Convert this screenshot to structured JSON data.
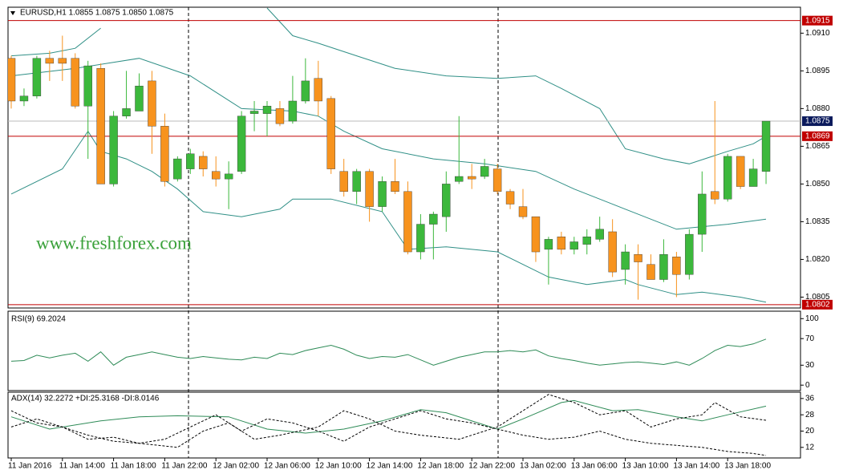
{
  "chart_data": [
    {
      "type": "candlestick",
      "title": "EURUSD,H1  1.0855 1.0875 1.0850 1.0875",
      "watermark": "www.freshforex.com",
      "categories": [
        "11 Jan 2016",
        null,
        null,
        null,
        "11 Jan 14:00",
        null,
        null,
        null,
        "11 Jan 18:00",
        null,
        null,
        null,
        "11 Jan 22:00",
        null,
        null,
        null,
        "12 Jan 02:00",
        null,
        null,
        null,
        "12 Jan 06:00",
        null,
        null,
        null,
        "12 Jan 10:00",
        null,
        null,
        null,
        "12 Jan 14:00",
        null,
        null,
        null,
        "12 Jan 18:00",
        null,
        null,
        null,
        "12 Jan 22:00",
        null,
        null,
        null,
        "13 Jan 02:00",
        null,
        null,
        null,
        "13 Jan 06:00",
        null,
        null,
        null,
        "13 Jan 10:00",
        null,
        null,
        null,
        "13 Jan 14:00",
        null,
        null,
        null,
        "13 Jan 18:00",
        null,
        null,
        null
      ],
      "open": [
        1.09,
        1.0883,
        1.0885,
        1.09,
        1.09,
        1.09,
        1.0881,
        1.0896,
        1.085,
        1.0877,
        1.0879,
        1.0891,
        1.0873,
        1.0852,
        1.0856,
        1.0861,
        1.0855,
        1.0852,
        1.0855,
        1.0878,
        1.0878,
        1.088,
        1.0875,
        1.0883,
        1.0892,
        1.0884,
        1.0855,
        1.0847,
        1.0855,
        1.0841,
        1.0851,
        1.0847,
        1.0823,
        1.0834,
        1.0837,
        1.0851,
        1.0853,
        1.0853,
        1.0856,
        1.0847,
        1.0841,
        1.0837,
        1.0824,
        1.0829,
        1.0824,
        1.0826,
        1.0828,
        1.0831,
        1.0816,
        1.0822,
        1.0818,
        1.0812,
        1.0821,
        1.0814,
        1.083,
        1.0847,
        1.0844,
        1.0861,
        1.0849,
        1.0855
      ],
      "high": [
        1.0901,
        1.0888,
        1.0901,
        1.0903,
        1.0909,
        1.0902,
        1.0899,
        1.0898,
        1.0879,
        1.0895,
        1.0894,
        1.0895,
        1.0878,
        1.0861,
        1.0864,
        1.0863,
        1.0861,
        1.0859,
        1.0879,
        1.0883,
        1.0883,
        1.0883,
        1.0893,
        1.09,
        1.0899,
        1.0885,
        1.086,
        1.0856,
        1.0856,
        1.0853,
        1.086,
        1.0851,
        1.0838,
        1.0839,
        1.0855,
        1.0877,
        1.0858,
        1.086,
        1.0858,
        1.0848,
        1.0848,
        1.0837,
        1.0829,
        1.0831,
        1.0829,
        1.0832,
        1.0837,
        1.0836,
        1.0826,
        1.0826,
        1.0822,
        1.0828,
        1.0823,
        1.0832,
        1.0855,
        1.0883,
        1.0862,
        1.0861,
        1.086,
        1.0875
      ],
      "low": [
        1.088,
        1.0881,
        1.0884,
        1.0891,
        1.0891,
        1.088,
        1.086,
        1.085,
        1.0849,
        1.0876,
        1.0879,
        1.0862,
        1.0849,
        1.0851,
        1.0854,
        1.0853,
        1.0849,
        1.084,
        1.0854,
        1.0871,
        1.0869,
        1.0873,
        1.0874,
        1.0882,
        1.0877,
        1.0854,
        1.0845,
        1.0842,
        1.0835,
        1.0839,
        1.0846,
        1.0822,
        1.082,
        1.082,
        1.0831,
        1.085,
        1.0848,
        1.0852,
        1.0846,
        1.084,
        1.0836,
        1.0819,
        1.081,
        1.0822,
        1.0822,
        1.0822,
        1.0827,
        1.0813,
        1.081,
        1.0804,
        1.0812,
        1.0811,
        1.0805,
        1.0812,
        1.0823,
        1.0842,
        1.0843,
        1.0848,
        1.0849,
        1.085
      ],
      "close": [
        1.0883,
        1.0885,
        1.09,
        1.0898,
        1.0898,
        1.0881,
        1.0897,
        1.085,
        1.0877,
        1.088,
        1.0889,
        1.0873,
        1.0851,
        1.086,
        1.0862,
        1.0856,
        1.0852,
        1.0854,
        1.0877,
        1.0879,
        1.0881,
        1.0874,
        1.0883,
        1.0891,
        1.0883,
        1.0856,
        1.0847,
        1.0855,
        1.0841,
        1.0851,
        1.0847,
        1.0823,
        1.0834,
        1.0838,
        1.085,
        1.0853,
        1.0852,
        1.0857,
        1.0847,
        1.0842,
        1.0837,
        1.0823,
        1.0828,
        1.0824,
        1.0827,
        1.0829,
        1.0832,
        1.0815,
        1.0823,
        1.0819,
        1.0812,
        1.0822,
        1.0814,
        1.083,
        1.0846,
        1.0844,
        1.0861,
        1.0849,
        1.0856,
        1.0875
      ],
      "up_color": "#3cb83c",
      "down_color": "#f7931e",
      "bands": [
        {
          "color": "#2f8f86",
          "x": [
            0,
            3,
            5,
            7,
            8,
            20,
            22,
            24,
            27,
            30,
            34,
            38,
            41,
            43,
            46,
            48,
            51,
            53,
            56,
            58,
            59
          ],
          "values": [
            1.0901,
            1.0902,
            1.0904,
            1.0912,
            null,
            1.092,
            1.0909,
            1.0906,
            1.0901,
            1.0896,
            1.0893,
            1.0892,
            1.0893,
            1.0888,
            1.088,
            1.0864,
            1.086,
            1.0858,
            1.0863,
            1.0866,
            1.0869
          ]
        },
        {
          "color": "#2f8f86",
          "x": [
            0,
            5,
            10,
            14,
            18,
            22,
            24,
            26,
            29,
            33,
            37,
            41,
            44,
            48,
            52,
            56,
            59
          ],
          "values": [
            1.0893,
            1.0896,
            1.09,
            1.0893,
            1.088,
            1.0879,
            1.0877,
            1.0871,
            1.0864,
            1.086,
            1.0858,
            1.0855,
            1.0848,
            1.084,
            1.0832,
            1.0834,
            1.0836
          ]
        },
        {
          "color": "#2f8f86",
          "x": [
            0,
            4,
            6,
            7,
            9,
            11,
            13,
            15,
            18,
            21,
            22,
            25,
            29,
            31,
            34,
            38,
            42,
            45,
            48,
            49,
            52,
            54,
            57,
            59
          ],
          "values": [
            1.0846,
            1.0856,
            1.0871,
            1.0863,
            1.086,
            1.0855,
            1.0848,
            1.0839,
            1.0837,
            1.084,
            1.0844,
            1.0844,
            1.0839,
            1.0824,
            1.0825,
            1.0823,
            1.0813,
            1.081,
            1.0812,
            1.081,
            1.0806,
            1.0807,
            1.0805,
            1.0803
          ]
        }
      ],
      "levels": [
        1.0915,
        1.0869,
        1.0802
      ],
      "level_color": "#c00000",
      "current": 1.0875,
      "current_color": "#0b1a5c",
      "ylim": [
        1.0801,
        1.092
      ],
      "yticks": [
        {
          "value": 1.091,
          "label": "1.0910"
        },
        1.0895,
        {
          "value": 1.088,
          "label": "1.0880"
        },
        1.0865,
        {
          "value": 1.085,
          "label": "1.0850"
        },
        1.0835,
        {
          "value": 1.082,
          "label": "1.0820"
        },
        1.0805
      ]
    },
    {
      "type": "line",
      "title": "RSI(9) 69.2024",
      "color": "#2e8b57",
      "values": [
        36,
        37,
        45,
        41,
        45,
        48,
        36,
        50,
        30,
        42,
        46,
        50,
        46,
        42,
        40,
        43,
        41,
        39,
        38,
        42,
        40,
        48,
        46,
        52,
        56,
        60,
        54,
        45,
        40,
        43,
        42,
        46,
        38,
        30,
        36,
        42,
        46,
        50,
        50,
        52,
        50,
        53,
        44,
        40,
        37,
        33,
        30,
        32,
        34,
        35,
        33,
        31,
        35,
        30,
        40,
        52,
        60,
        58,
        62,
        69.2024
      ],
      "ylim": [
        -7,
        110
      ],
      "yticks": [
        100,
        70,
        30,
        0
      ]
    },
    {
      "type": "line",
      "title": "ADX(14) 32.2272 +DI:25.3168 -DI:8.0146",
      "series": [
        {
          "color": "#2e8b57",
          "dash": false,
          "x": [
            0,
            3,
            7,
            10,
            13,
            17,
            20,
            23,
            26,
            29,
            32,
            34,
            37,
            38,
            40,
            43,
            44,
            47,
            49,
            52,
            54,
            56,
            59
          ],
          "values": [
            27,
            21,
            25,
            27,
            27.5,
            27,
            21,
            19,
            21,
            25,
            30.5,
            29,
            23,
            21,
            26,
            34,
            35,
            30,
            30.5,
            27,
            25,
            28,
            32.2272
          ]
        },
        {
          "color": "#000000",
          "dash": true,
          "x": [
            0,
            2,
            4,
            6,
            8,
            10,
            13,
            15,
            17,
            19,
            21,
            24,
            26,
            28,
            30,
            32,
            35,
            37,
            38,
            40,
            42,
            44,
            46,
            48,
            50,
            52,
            54,
            55,
            57,
            59
          ],
          "values": [
            30,
            24,
            22,
            18,
            15,
            14,
            12,
            20,
            24,
            16,
            18,
            22,
            30,
            26,
            20,
            18,
            16,
            20,
            22,
            30,
            38,
            34,
            28,
            30,
            22,
            26,
            28,
            34,
            27,
            25.3168
          ]
        },
        {
          "color": "#000000",
          "dash": true,
          "x": [
            0,
            2,
            4,
            6,
            8,
            10,
            12,
            14,
            16,
            18,
            20,
            22,
            24,
            26,
            28,
            30,
            32,
            34,
            36,
            38,
            40,
            42,
            44,
            46,
            48,
            50,
            52,
            54,
            56,
            58,
            59
          ],
          "values": [
            22,
            26,
            22,
            16,
            17,
            14,
            16,
            22,
            28,
            20,
            26,
            24,
            20,
            15,
            22,
            26,
            30,
            26,
            24,
            21,
            18,
            16,
            17,
            20,
            16,
            14,
            13,
            12,
            10,
            9,
            8.0146
          ]
        }
      ],
      "ylim": [
        7.2,
        38.7
      ],
      "yticks": [
        36,
        28,
        20,
        12
      ]
    }
  ]
}
